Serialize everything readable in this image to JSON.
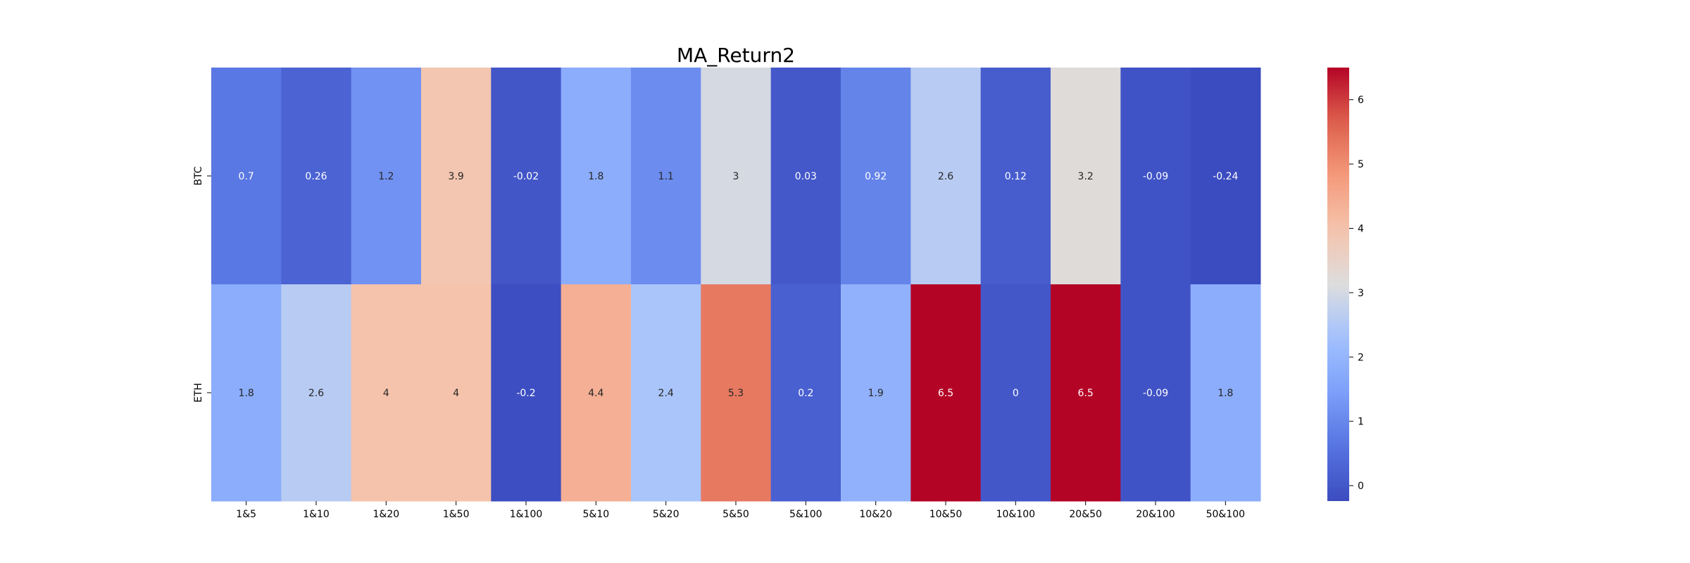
{
  "chart_data": {
    "type": "heatmap",
    "title": "MA_Return2",
    "xlabel": "",
    "ylabel": "",
    "x_categories": [
      "1&5",
      "1&10",
      "1&20",
      "1&50",
      "1&100",
      "5&10",
      "5&20",
      "5&50",
      "5&100",
      "10&20",
      "10&50",
      "10&100",
      "20&50",
      "20&100",
      "50&100"
    ],
    "y_categories": [
      "BTC",
      "ETH"
    ],
    "values": [
      [
        0.7,
        0.26,
        1.2,
        3.9,
        -0.02,
        1.8,
        1.1,
        3,
        0.03,
        0.92,
        2.6,
        0.12,
        3.2,
        -0.09,
        -0.24
      ],
      [
        1.8,
        2.6,
        4,
        4,
        -0.2,
        4.4,
        2.4,
        5.3,
        0.2,
        1.9,
        6.5,
        0,
        6.5,
        -0.09,
        1.8
      ]
    ],
    "colormap": "coolwarm",
    "color_range": [
      -0.24,
      6.5
    ],
    "colorbar": {
      "ticks": [
        0,
        1,
        2,
        3,
        4,
        5,
        6
      ],
      "position": "right"
    },
    "annotations": true,
    "grid": false
  }
}
